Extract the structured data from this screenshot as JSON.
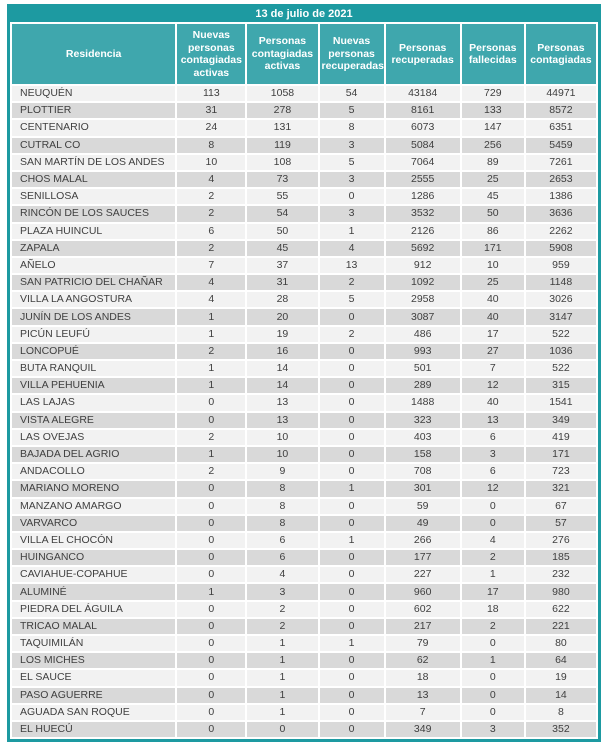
{
  "title": "13 de julio de 2021",
  "colors": {
    "teal_dark": "#1d9aa1",
    "teal_header": "#3fa7ad",
    "row_light": "#f2f2f2",
    "row_dark": "#d9d9d9",
    "text_dark": "#3f3f3f"
  },
  "chart_data": {
    "type": "table",
    "title": "13 de julio de 2021",
    "columns": [
      "Residencia",
      "Nuevas personas contagiadas activas",
      "Personas contagiadas activas",
      "Nuevas personas recuperadas",
      "Personas recuperadas",
      "Personas fallecidas",
      "Personas contagiadas"
    ],
    "rows": [
      [
        "NEUQUÉN",
        113,
        1058,
        54,
        43184,
        729,
        44971
      ],
      [
        "PLOTTIER",
        31,
        278,
        5,
        8161,
        133,
        8572
      ],
      [
        "CENTENARIO",
        24,
        131,
        8,
        6073,
        147,
        6351
      ],
      [
        "CUTRAL CO",
        8,
        119,
        3,
        5084,
        256,
        5459
      ],
      [
        "SAN MARTÍN DE LOS ANDES",
        10,
        108,
        5,
        7064,
        89,
        7261
      ],
      [
        "CHOS MALAL",
        4,
        73,
        3,
        2555,
        25,
        2653
      ],
      [
        "SENILLOSA",
        2,
        55,
        0,
        1286,
        45,
        1386
      ],
      [
        "RINCÓN DE LOS SAUCES",
        2,
        54,
        3,
        3532,
        50,
        3636
      ],
      [
        "PLAZA HUINCUL",
        6,
        50,
        1,
        2126,
        86,
        2262
      ],
      [
        "ZAPALA",
        2,
        45,
        4,
        5692,
        171,
        5908
      ],
      [
        "AÑELO",
        7,
        37,
        13,
        912,
        10,
        959
      ],
      [
        "SAN PATRICIO DEL CHAÑAR",
        4,
        31,
        2,
        1092,
        25,
        1148
      ],
      [
        "VILLA LA ANGOSTURA",
        4,
        28,
        5,
        2958,
        40,
        3026
      ],
      [
        "JUNÍN DE LOS ANDES",
        1,
        20,
        0,
        3087,
        40,
        3147
      ],
      [
        "PICÚN LEUFÚ",
        1,
        19,
        2,
        486,
        17,
        522
      ],
      [
        "LONCOPUÉ",
        2,
        16,
        0,
        993,
        27,
        1036
      ],
      [
        "BUTA RANQUIL",
        1,
        14,
        0,
        501,
        7,
        522
      ],
      [
        "VILLA PEHUENIA",
        1,
        14,
        0,
        289,
        12,
        315
      ],
      [
        "LAS LAJAS",
        0,
        13,
        0,
        1488,
        40,
        1541
      ],
      [
        "VISTA ALEGRE",
        0,
        13,
        0,
        323,
        13,
        349
      ],
      [
        "LAS OVEJAS",
        2,
        10,
        0,
        403,
        6,
        419
      ],
      [
        "BAJADA DEL AGRIO",
        1,
        10,
        0,
        158,
        3,
        171
      ],
      [
        "ANDACOLLO",
        2,
        9,
        0,
        708,
        6,
        723
      ],
      [
        "MARIANO MORENO",
        0,
        8,
        1,
        301,
        12,
        321
      ],
      [
        "MANZANO AMARGO",
        0,
        8,
        0,
        59,
        0,
        67
      ],
      [
        "VARVARCO",
        0,
        8,
        0,
        49,
        0,
        57
      ],
      [
        "VILLA EL CHOCÓN",
        0,
        6,
        1,
        266,
        4,
        276
      ],
      [
        "HUINGANCO",
        0,
        6,
        0,
        177,
        2,
        185
      ],
      [
        "CAVIAHUE-COPAHUE",
        0,
        4,
        0,
        227,
        1,
        232
      ],
      [
        "ALUMINÉ",
        1,
        3,
        0,
        960,
        17,
        980
      ],
      [
        "PIEDRA DEL ÁGUILA",
        0,
        2,
        0,
        602,
        18,
        622
      ],
      [
        "TRICAO MALAL",
        0,
        2,
        0,
        217,
        2,
        221
      ],
      [
        "TAQUIMILÁN",
        0,
        1,
        1,
        79,
        0,
        80
      ],
      [
        "LOS MICHES",
        0,
        1,
        0,
        62,
        1,
        64
      ],
      [
        "EL SAUCE",
        0,
        1,
        0,
        18,
        0,
        19
      ],
      [
        "PASO AGUERRE",
        0,
        1,
        0,
        13,
        0,
        14
      ],
      [
        "AGUADA SAN ROQUE",
        0,
        1,
        0,
        7,
        0,
        8
      ],
      [
        "EL HUECÚ",
        0,
        0,
        0,
        349,
        3,
        352
      ]
    ]
  }
}
